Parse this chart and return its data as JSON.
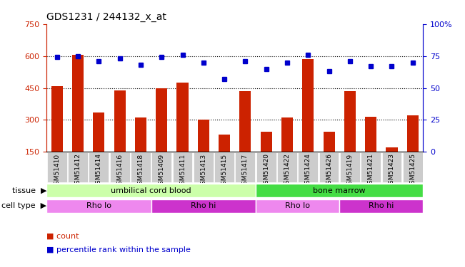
{
  "title": "GDS1231 / 244132_x_at",
  "samples": [
    "GSM51410",
    "GSM51412",
    "GSM51414",
    "GSM51416",
    "GSM51418",
    "GSM51409",
    "GSM51411",
    "GSM51413",
    "GSM51415",
    "GSM51417",
    "GSM51420",
    "GSM51422",
    "GSM51424",
    "GSM51426",
    "GSM51419",
    "GSM51421",
    "GSM51423",
    "GSM51425"
  ],
  "counts": [
    460,
    605,
    335,
    440,
    310,
    450,
    475,
    300,
    230,
    435,
    245,
    310,
    585,
    245,
    435,
    315,
    170,
    320
  ],
  "percentiles": [
    74,
    75,
    71,
    73,
    68,
    74,
    76,
    70,
    57,
    71,
    65,
    70,
    76,
    63,
    71,
    67,
    67,
    70
  ],
  "ylim_left": [
    150,
    750
  ],
  "ylim_right": [
    0,
    100
  ],
  "yticks_left": [
    150,
    300,
    450,
    600,
    750
  ],
  "yticks_right": [
    0,
    25,
    50,
    75,
    100
  ],
  "bar_color": "#cc2200",
  "dot_color": "#0000cc",
  "tissue_labels": [
    {
      "label": "umbilical cord blood",
      "start": 0,
      "end": 10,
      "color": "#ccffaa"
    },
    {
      "label": "bone marrow",
      "start": 10,
      "end": 18,
      "color": "#44dd44"
    }
  ],
  "celltype_labels": [
    {
      "label": "Rho lo",
      "start": 0,
      "end": 5,
      "color": "#ee88ee"
    },
    {
      "label": "Rho hi",
      "start": 5,
      "end": 10,
      "color": "#cc33cc"
    },
    {
      "label": "Rho lo",
      "start": 10,
      "end": 14,
      "color": "#ee88ee"
    },
    {
      "label": "Rho hi",
      "start": 14,
      "end": 18,
      "color": "#cc33cc"
    }
  ],
  "legend_count_label": "count",
  "legend_pct_label": "percentile rank within the sample",
  "hlines": [
    300,
    450,
    600
  ],
  "xtick_bg": "#cccccc",
  "plot_bg": "#ffffff"
}
